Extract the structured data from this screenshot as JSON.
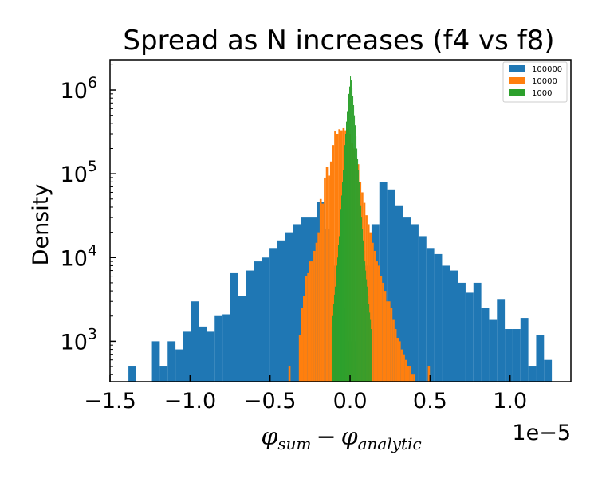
{
  "chart_data": {
    "type": "histogram",
    "title": "Spread as N increases (f4 vs f8)",
    "ylabel": "Density",
    "xlabel": {
      "symbol": "φ",
      "sub1": "sum",
      "minus": "−",
      "sub2": "analytic"
    },
    "x_offset_label": "1e−5",
    "x_scale_multiplier": 1e-05,
    "y_scale": "log",
    "xlim": [
      -1.5,
      1.38
    ],
    "ylim": [
      330,
      2300000
    ],
    "x_ticks": [
      {
        "value": -1.5,
        "label": "−1.5"
      },
      {
        "value": -1.0,
        "label": "−1.0"
      },
      {
        "value": -0.5,
        "label": "−0.5"
      },
      {
        "value": 0.0,
        "label": "0.0"
      },
      {
        "value": 0.5,
        "label": "0.5"
      },
      {
        "value": 1.0,
        "label": "1.0"
      }
    ],
    "y_ticks": [
      {
        "value": 1000,
        "base": "10",
        "exp": "3"
      },
      {
        "value": 10000,
        "base": "10",
        "exp": "4"
      },
      {
        "value": 100000,
        "base": "10",
        "exp": "5"
      },
      {
        "value": 1000000,
        "base": "10",
        "exp": "6"
      }
    ],
    "legend_position": "top-right",
    "series": [
      {
        "name": "100000",
        "color": "#1f77b4",
        "edges": [
          -1.385,
          -1.336,
          -1.287,
          -1.238,
          -1.189,
          -1.14,
          -1.091,
          -1.042,
          -0.993,
          -0.944,
          -0.895,
          -0.846,
          -0.797,
          -0.748,
          -0.699,
          -0.65,
          -0.601,
          -0.552,
          -0.503,
          -0.454,
          -0.405,
          -0.356,
          -0.307,
          -0.258,
          -0.209,
          -0.16,
          -0.111,
          -0.062,
          -0.013,
          0.036,
          0.085,
          0.134,
          0.183,
          0.232,
          0.281,
          0.33,
          0.379,
          0.428,
          0.477,
          0.526,
          0.575,
          0.624,
          0.673,
          0.722,
          0.771,
          0.82,
          0.869,
          0.918,
          0.967,
          1.016,
          1.065,
          1.114,
          1.163,
          1.212,
          1.261
        ],
        "densities": [
          500,
          0,
          0,
          1000,
          500,
          1000,
          800,
          1300,
          3000,
          1500,
          1300,
          2000,
          2100,
          6500,
          3500,
          7000,
          9000,
          10000,
          13000,
          16000,
          20000,
          25000,
          30000,
          30000,
          46000,
          22000,
          8000,
          2500,
          1000,
          2500,
          8000,
          25000,
          80000,
          65000,
          42000,
          30000,
          25000,
          18000,
          13000,
          11000,
          8000,
          7000,
          5000,
          3800,
          5000,
          2500,
          1800,
          3200,
          1400,
          1400,
          1900,
          500,
          1200,
          600
        ]
      },
      {
        "name": "10000",
        "color": "#ff7f0e",
        "edges": [
          -0.45,
          -0.437,
          -0.424,
          -0.411,
          -0.398,
          -0.385,
          -0.372,
          -0.359,
          -0.346,
          -0.333,
          -0.32,
          -0.307,
          -0.294,
          -0.281,
          -0.268,
          -0.255,
          -0.242,
          -0.229,
          -0.216,
          -0.203,
          -0.19,
          -0.177,
          -0.164,
          -0.151,
          -0.138,
          -0.125,
          -0.112,
          -0.099,
          -0.086,
          -0.073,
          -0.06,
          -0.047,
          -0.034,
          -0.021,
          -0.008,
          0.005,
          0.018,
          0.031,
          0.044,
          0.057,
          0.07,
          0.083,
          0.096,
          0.109,
          0.122,
          0.135,
          0.148,
          0.161,
          0.174,
          0.187,
          0.2,
          0.213,
          0.226,
          0.239,
          0.252,
          0.265,
          0.278,
          0.291,
          0.304,
          0.317,
          0.33,
          0.343,
          0.356,
          0.369,
          0.382,
          0.395,
          0.408,
          0.421,
          0.434,
          0.447,
          0.46,
          0.473,
          0.486,
          0.499,
          0.512,
          0.525,
          0.538
        ],
        "densities": [
          0,
          0,
          0,
          0,
          0,
          500,
          0,
          0,
          0,
          0,
          1200,
          2500,
          3500,
          6000,
          6500,
          9000,
          9000,
          12000,
          15000,
          20000,
          50000,
          44000,
          90000,
          120000,
          95000,
          140000,
          220000,
          320000,
          300000,
          340000,
          330000,
          350000,
          330000,
          340000,
          300000,
          230000,
          200000,
          155000,
          130000,
          80000,
          60000,
          45000,
          32000,
          25000,
          20000,
          15000,
          12000,
          9000,
          8000,
          6000,
          5000,
          4000,
          3000,
          3000,
          2500,
          1800,
          1400,
          1100,
          1000,
          800,
          700,
          600,
          500,
          500,
          400,
          400,
          0,
          0,
          0,
          0,
          0,
          0,
          500,
          0,
          0,
          0
        ]
      },
      {
        "name": "1000",
        "color": "#2ca02c",
        "edges": [
          -0.115,
          -0.11,
          -0.105,
          -0.1,
          -0.095,
          -0.09,
          -0.085,
          -0.08,
          -0.075,
          -0.07,
          -0.065,
          -0.06,
          -0.055,
          -0.05,
          -0.045,
          -0.04,
          -0.035,
          -0.03,
          -0.025,
          -0.02,
          -0.015,
          -0.01,
          -0.005,
          0.0,
          0.005,
          0.01,
          0.015,
          0.02,
          0.025,
          0.03,
          0.035,
          0.04,
          0.045,
          0.05,
          0.055,
          0.06,
          0.065,
          0.07,
          0.075,
          0.08,
          0.085,
          0.09,
          0.095,
          0.1,
          0.105,
          0.11,
          0.115,
          0.12,
          0.125,
          0.13,
          0.135
        ],
        "densities": [
          1500,
          2000,
          2800,
          3600,
          4500,
          6000,
          8000,
          10000,
          14000,
          18000,
          26000,
          38000,
          55000,
          80000,
          110000,
          160000,
          220000,
          300000,
          420000,
          560000,
          720000,
          900000,
          1100000,
          1450000,
          1300000,
          1050000,
          850000,
          660000,
          500000,
          380000,
          280000,
          200000,
          150000,
          110000,
          80000,
          58000,
          42000,
          30000,
          22000,
          16000,
          12000,
          9000,
          7000,
          5500,
          4500,
          3500,
          2800,
          2200,
          1800,
          1400
        ]
      }
    ]
  }
}
